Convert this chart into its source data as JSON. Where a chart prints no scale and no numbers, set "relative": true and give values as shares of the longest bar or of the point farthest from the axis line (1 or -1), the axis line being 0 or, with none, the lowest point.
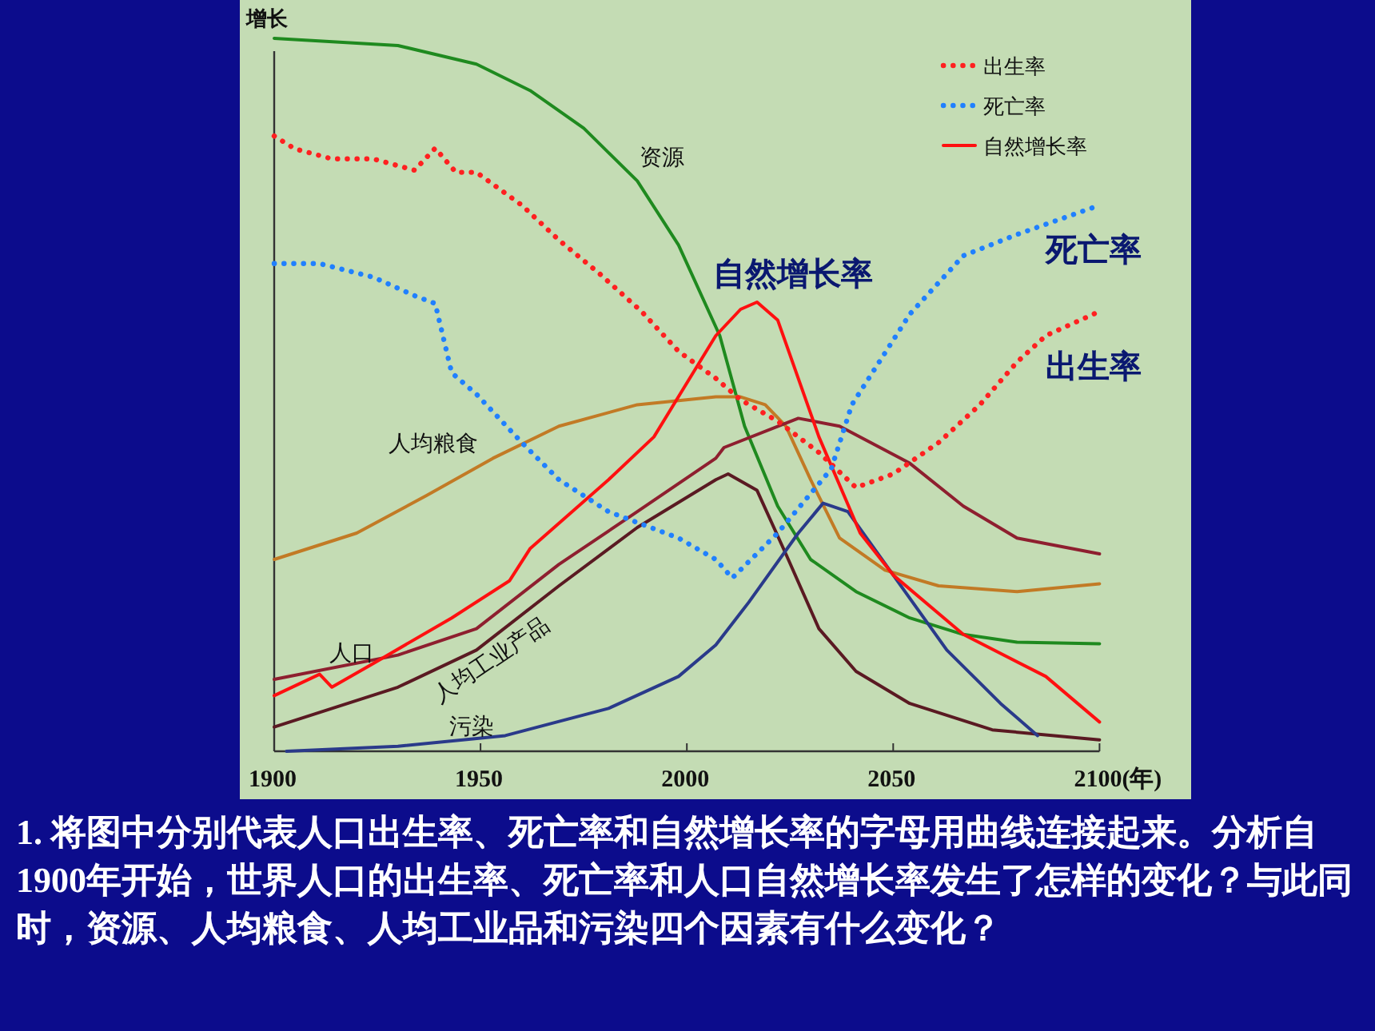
{
  "chart_data": {
    "type": "line",
    "relative": true,
    "ylabel": "增长",
    "tick_labels": "x",
    "grid": false,
    "legend": "top right",
    "xlim": [
      1900,
      2100
    ],
    "xticks": [
      1900,
      1950,
      2000,
      2050,
      {
        "value": 2100,
        "label": "2100(年)"
      }
    ],
    "series": [
      {
        "name": "资源",
        "color": "#1f8a1f",
        "x": [
          1900,
          1930,
          1949,
          1962,
          1975,
          1988,
          1998,
          2008,
          2014,
          2022,
          2030,
          2041,
          2054,
          2067,
          2080,
          2100
        ],
        "values": [
          1.0,
          0.99,
          0.964,
          0.927,
          0.874,
          0.8,
          0.71,
          0.583,
          0.456,
          0.344,
          0.269,
          0.224,
          0.187,
          0.164,
          0.153,
          0.151
        ]
      },
      {
        "name": "人均粮食",
        "color": "#c27a25",
        "x": [
          1900,
          1920,
          1937,
          1953,
          1969,
          1988,
          2007,
          2013,
          2019,
          2024,
          2030,
          2037,
          2048,
          2061,
          2080,
          2100
        ],
        "values": [
          0.269,
          0.306,
          0.359,
          0.411,
          0.456,
          0.486,
          0.497,
          0.497,
          0.486,
          0.456,
          0.381,
          0.299,
          0.254,
          0.232,
          0.224,
          0.235
        ]
      },
      {
        "name": "人口",
        "color": "#8e1f2f",
        "x": [
          1900,
          1930,
          1949,
          1969,
          1988,
          2007,
          2009,
          2027,
          2037,
          2054,
          2067,
          2080,
          2100
        ],
        "values": [
          0.101,
          0.135,
          0.172,
          0.262,
          0.336,
          0.411,
          0.426,
          0.467,
          0.456,
          0.404,
          0.344,
          0.299,
          0.277
        ]
      },
      {
        "name": "人均工业产品",
        "color": "#5a1a22",
        "x": [
          1900,
          1930,
          1949,
          1969,
          1988,
          2007,
          2010,
          2017,
          2024,
          2032,
          2041,
          2054,
          2074,
          2100
        ],
        "values": [
          0.034,
          0.09,
          0.142,
          0.232,
          0.314,
          0.381,
          0.389,
          0.366,
          0.277,
          0.172,
          0.112,
          0.067,
          0.03,
          0.016
        ]
      },
      {
        "name": "污染",
        "color": "#2a3a8a",
        "x": [
          1903,
          1930,
          1956,
          1981,
          1998,
          2007,
          2015,
          2027,
          2033,
          2039,
          2050,
          2063,
          2076,
          2085
        ],
        "values": [
          0.0,
          0.007,
          0.022,
          0.06,
          0.105,
          0.149,
          0.209,
          0.306,
          0.348,
          0.336,
          0.247,
          0.142,
          0.067,
          0.022
        ]
      },
      {
        "name": "自然增长率",
        "color": "#ff1010",
        "line_style": "solid",
        "x": [
          1900,
          1911,
          1914,
          1924,
          1943,
          1957,
          1962,
          1981,
          1992,
          2007,
          2013,
          2017,
          2022,
          2032,
          2042,
          2050,
          2067,
          2087,
          2100
        ],
        "values": [
          0.078,
          0.108,
          0.09,
          0.123,
          0.187,
          0.239,
          0.284,
          0.381,
          0.441,
          0.583,
          0.62,
          0.63,
          0.605,
          0.441,
          0.306,
          0.247,
          0.164,
          0.105,
          0.041
        ]
      },
      {
        "name": "出生率",
        "color": "#ff2020",
        "line_style": "dotted",
        "x": [
          1900,
          1905,
          1914,
          1924,
          1934,
          1939,
          1944,
          1949,
          1960,
          1969,
          1979,
          1989,
          1998,
          2007,
          2013,
          2022,
          2032,
          2041,
          2050,
          2061,
          2071,
          2080,
          2087,
          2100
        ],
        "values": [
          0.863,
          0.845,
          0.831,
          0.831,
          0.815,
          0.846,
          0.812,
          0.812,
          0.766,
          0.717,
          0.669,
          0.617,
          0.561,
          0.523,
          0.493,
          0.463,
          0.419,
          0.37,
          0.389,
          0.433,
          0.486,
          0.546,
          0.583,
          0.617
        ]
      },
      {
        "name": "死亡率",
        "color": "#2080ff",
        "line_style": "dotted",
        "x": [
          1900,
          1911,
          1924,
          1934,
          1939,
          1943,
          1949,
          1960,
          1969,
          1981,
          1998,
          2007,
          2011,
          2022,
          2035,
          2040,
          2054,
          2067,
          2080,
          2100
        ],
        "values": [
          0.684,
          0.684,
          0.665,
          0.639,
          0.628,
          0.531,
          0.501,
          0.433,
          0.381,
          0.336,
          0.299,
          0.269,
          0.243,
          0.306,
          0.396,
          0.486,
          0.613,
          0.695,
          0.725,
          0.766
        ]
      }
    ],
    "annotations": [
      "1. 将图中分别代表人口出生率、死亡率和自然增长率的字母用曲线连接起来。分析自1900年开始，世界人口的出生率、死亡率和人口自然增长率发生了怎样的变化？与此同时，资源、人均粮食、人均工业品和污染四个因素有什么变化？"
    ]
  }
}
